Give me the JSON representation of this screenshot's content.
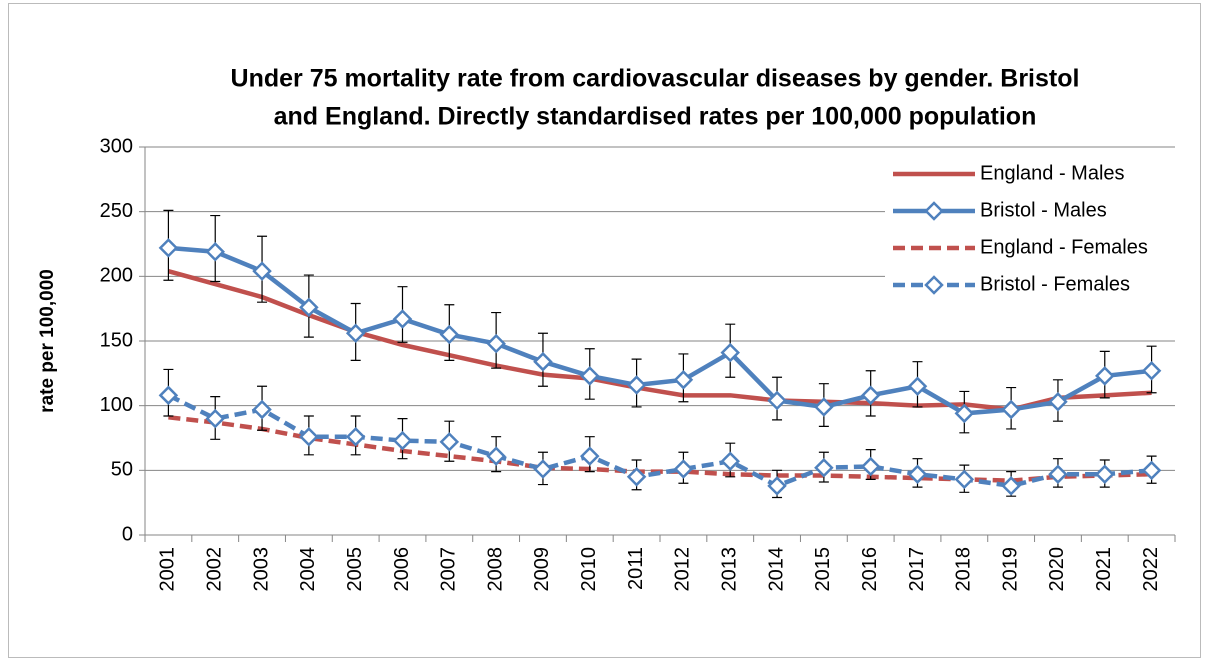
{
  "chart_data": {
    "type": "line",
    "title_lines": [
      "Under 75 mortality rate from cardiovascular diseases by gender. Bristol",
      "and England. Directly standardised rates per 100,000 population"
    ],
    "y_label": "rate per 100,000",
    "categories": [
      "2001",
      "2002",
      "2003",
      "2004",
      "2005",
      "2006",
      "2007",
      "2008",
      "2009",
      "2010",
      "2011",
      "2012",
      "2013",
      "2014",
      "2015",
      "2016",
      "2017",
      "2018",
      "2019",
      "2020",
      "2021",
      "2022"
    ],
    "ylim": [
      0,
      300
    ],
    "yticks": [
      0,
      50,
      100,
      150,
      200,
      250,
      300
    ],
    "grid": true,
    "legend": "right",
    "series": [
      {
        "name": "England - Males",
        "color": "#c0504d",
        "line_style": "solid",
        "marker": "none",
        "values": [
          204,
          194,
          184,
          170,
          157,
          147,
          139,
          131,
          124,
          121,
          114,
          108,
          108,
          104,
          103,
          102,
          100,
          101,
          97,
          106,
          108,
          110
        ]
      },
      {
        "name": "Bristol - Males",
        "color": "#4f81bd",
        "line_style": "solid",
        "marker": "diamond",
        "values": [
          222,
          219,
          204,
          176,
          156,
          167,
          155,
          148,
          134,
          123,
          116,
          120,
          141,
          104,
          99,
          108,
          115,
          94,
          97,
          103,
          123,
          127
        ],
        "lower": [
          197,
          196,
          180,
          153,
          135,
          149,
          135,
          129,
          115,
          105,
          99,
          103,
          122,
          89,
          84,
          92,
          99,
          79,
          82,
          88,
          106,
          110
        ],
        "upper": [
          251,
          247,
          231,
          201,
          179,
          192,
          178,
          172,
          156,
          144,
          136,
          140,
          163,
          122,
          117,
          127,
          134,
          111,
          114,
          120,
          142,
          146
        ]
      },
      {
        "name": "England - Females",
        "color": "#c0504d",
        "line_style": "dashed",
        "marker": "none",
        "values": [
          91,
          87,
          82,
          75,
          70,
          65,
          61,
          57,
          52,
          51,
          49,
          49,
          47,
          46,
          46,
          45,
          44,
          43,
          42,
          45,
          46,
          47
        ]
      },
      {
        "name": "Bristol - Females",
        "color": "#4f81bd",
        "line_style": "dashed",
        "marker": "diamond",
        "values": [
          108,
          90,
          97,
          76,
          76,
          73,
          72,
          61,
          51,
          61,
          45,
          51,
          57,
          38,
          52,
          53,
          47,
          43,
          38,
          47,
          47,
          50
        ],
        "lower": [
          92,
          74,
          81,
          62,
          62,
          59,
          57,
          49,
          39,
          49,
          35,
          40,
          45,
          29,
          41,
          43,
          37,
          33,
          30,
          37,
          37,
          40
        ],
        "upper": [
          128,
          107,
          115,
          92,
          92,
          90,
          88,
          76,
          64,
          76,
          58,
          64,
          71,
          50,
          64,
          66,
          59,
          54,
          49,
          59,
          58,
          61
        ]
      }
    ]
  }
}
